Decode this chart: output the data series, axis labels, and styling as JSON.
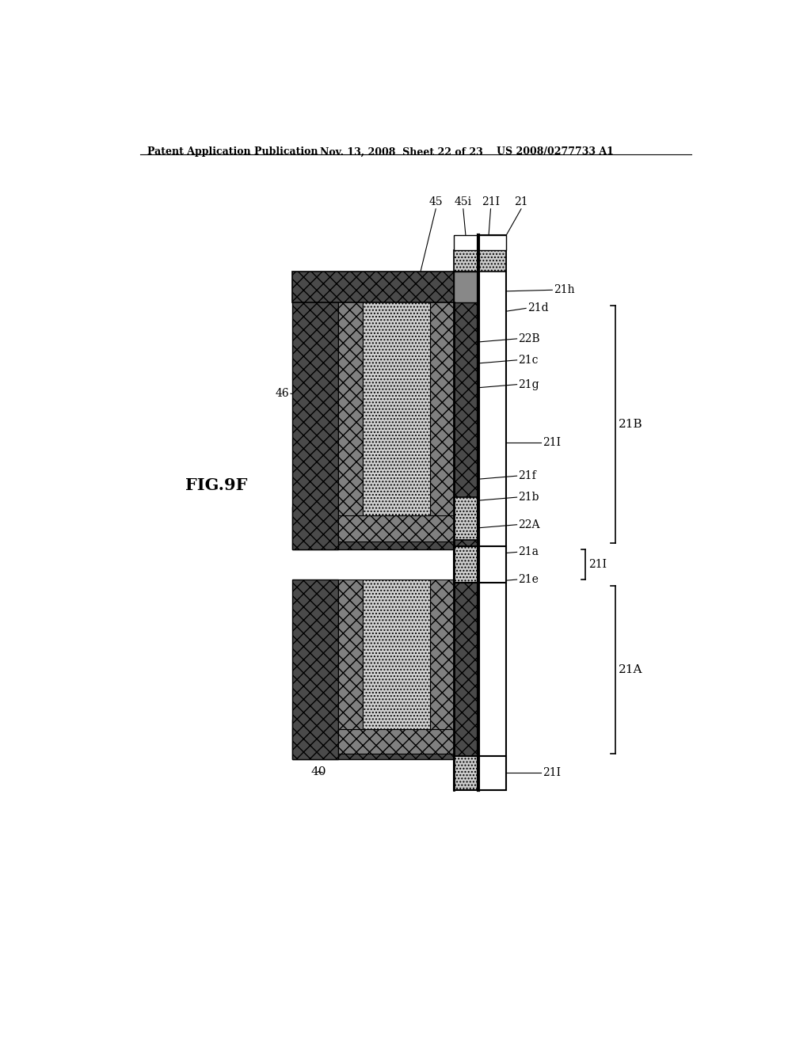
{
  "title_left": "Patent Application Publication",
  "title_mid": "Nov. 13, 2008  Sheet 22 of 23",
  "title_right": "US 2008/0277733 A1",
  "fig_label": "FIG.9F",
  "bottom_label": "40",
  "background": "#ffffff"
}
